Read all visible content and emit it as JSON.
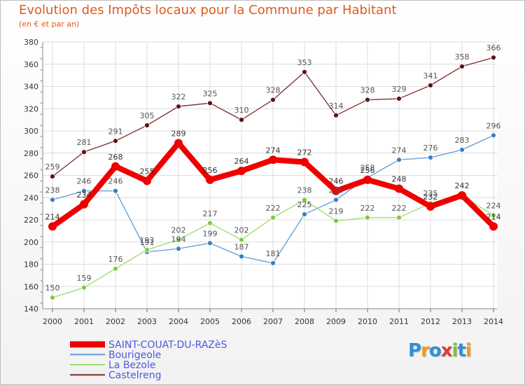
{
  "title": "Evolution des Impôts locaux pour la Commune par Habitant",
  "subtitle": "(en € et par an)",
  "logo": {
    "text": "Proxiti",
    "colors": [
      "#2f8fd8",
      "#f29a1b",
      "#2f8fd8",
      "#e53a2f",
      "#7cc241",
      "#2f8fd8",
      "#f29a1b"
    ]
  },
  "chart_data": {
    "type": "line",
    "x": [
      2000,
      2001,
      2002,
      2003,
      2004,
      2005,
      2006,
      2007,
      2008,
      2009,
      2010,
      2011,
      2012,
      2013,
      2014
    ],
    "ylim": [
      140,
      380
    ],
    "yticks": [
      140,
      160,
      180,
      200,
      220,
      240,
      260,
      280,
      300,
      320,
      340,
      360,
      380
    ],
    "grid": true,
    "legend": "bottom-left",
    "series": [
      {
        "name": "SAINT-COUAT-DU-RAZèS",
        "color": "#ee0000",
        "marker": "#ee0000",
        "labelColor": "#333333",
        "width": 8,
        "markerR": 6,
        "values": [
          214,
          234,
          268,
          255,
          289,
          256,
          264,
          274,
          272,
          246,
          256,
          248,
          232,
          242,
          214
        ]
      },
      {
        "name": "Bourigeole",
        "color": "#5b9bd5",
        "marker": "#3a7fc4",
        "labelColor": "#555555",
        "width": 1.3,
        "markerR": 3.5,
        "values": [
          238,
          246,
          246,
          191,
          194,
          199,
          187,
          181,
          225,
          238,
          258,
          274,
          276,
          283,
          296
        ]
      },
      {
        "name": "La Bezole",
        "color": "#9bdc6a",
        "marker": "#7ecb3f",
        "labelColor": "#555555",
        "width": 1.3,
        "markerR": 3.5,
        "values": [
          150,
          159,
          176,
          193,
          202,
          217,
          202,
          222,
          238,
          219,
          222,
          222,
          235,
          242,
          224
        ]
      },
      {
        "name": "Castelreng",
        "color": "#7a2a2a",
        "marker": "#5a1515",
        "labelColor": "#555555",
        "width": 1.3,
        "markerR": 3.5,
        "values": [
          259,
          281,
          291,
          305,
          322,
          325,
          310,
          328,
          353,
          314,
          328,
          329,
          341,
          358,
          366
        ]
      }
    ]
  }
}
